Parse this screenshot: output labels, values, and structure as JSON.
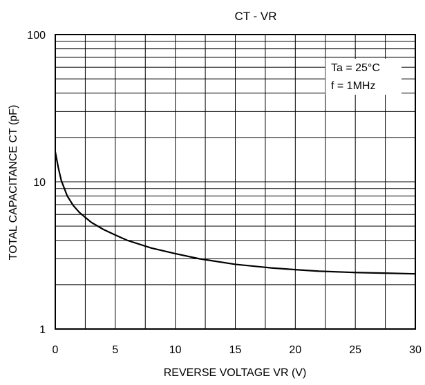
{
  "chart_data": {
    "type": "line",
    "title": "CT - VR",
    "xlabel": "REVERSE VOLTAGE  VR (V)",
    "ylabel": "TOTAL CAPACITANCE  CT (pF)",
    "xlim": [
      0,
      30
    ],
    "ylim": [
      1,
      100
    ],
    "yscale": "log",
    "grid": true,
    "x_ticks": [
      0,
      5,
      10,
      15,
      20,
      25,
      30
    ],
    "x_tick_labels": [
      "0",
      "5",
      "10",
      "15",
      "20",
      "25",
      "30"
    ],
    "y_ticks": [
      1,
      10,
      100
    ],
    "y_tick_labels": [
      "1",
      "10",
      "100"
    ],
    "annotations": [
      "Ta = 25°C",
      "f = 1MHz"
    ],
    "series": [
      {
        "x": [
          0,
          0.25,
          0.5,
          1,
          1.5,
          2,
          3,
          4,
          5,
          6,
          8,
          10,
          12,
          15,
          18,
          20,
          22,
          25,
          28,
          30
        ],
        "y": [
          16,
          12.5,
          10.2,
          8.0,
          6.9,
          6.2,
          5.3,
          4.75,
          4.35,
          4.0,
          3.55,
          3.25,
          3.0,
          2.75,
          2.6,
          2.53,
          2.47,
          2.42,
          2.39,
          2.37
        ]
      }
    ]
  }
}
